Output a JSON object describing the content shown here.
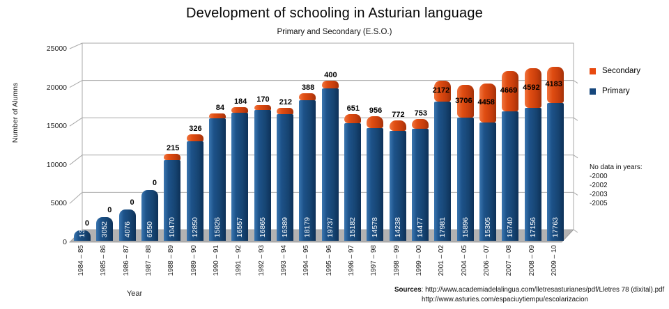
{
  "title": "Development of schooling in Asturian language",
  "subtitle": "Primary and Secondary (E.S.O.)",
  "ylabel": "Number of Alumns",
  "xlabel": "Year",
  "legend": {
    "secondary": "Secondary",
    "primary": "Primary"
  },
  "no_data": {
    "heading": "No data in years:",
    "years": [
      "-2000",
      "-2002",
      "-2003",
      "-2005"
    ]
  },
  "sources": {
    "label": "Sources",
    "line1_rest": ": http://www.academiadelalingua.com/lletresasturianes/pdf/Lletres 78 (dixital).pdf",
    "line2": "http://www.asturies.com/espaciuytiempu/escolarizacion"
  },
  "colors": {
    "primary": "#16477c",
    "secondary": "#e8490f",
    "grid": "#a9a9a9",
    "floor": "#b3b2b2",
    "bar_value_text": "#ffffff"
  },
  "chart_data": {
    "type": "bar",
    "stacked": true,
    "title": "Development of schooling in Asturian language",
    "subtitle": "Primary and Secondary (E.S.O.)",
    "xlabel": "Year",
    "ylabel": "Number of Alumns",
    "ylim": [
      0,
      25000
    ],
    "yticks": [
      0,
      5000,
      10000,
      15000,
      20000,
      25000
    ],
    "grid": true,
    "legend_position": "right",
    "categories": [
      "1984 – 85",
      "1985 – 86",
      "1986 – 87",
      "1987 – 88",
      "1988 – 89",
      "1989 – 90",
      "1990 – 91",
      "1991 – 92",
      "1992 – 93",
      "1993 – 94",
      "1994 – 95",
      "1995 – 96",
      "1996 – 97",
      "1997 – 98",
      "1998 – 99",
      "1999 – 00",
      "2001 – 02",
      "2004 – 05",
      "2006 – 07",
      "2007 – 08",
      "2008 – 09",
      "2009 – 10"
    ],
    "series": [
      {
        "name": "Primary",
        "values": [
          1351,
          3052,
          4076,
          6550,
          10470,
          12850,
          15826,
          16557,
          16865,
          16389,
          18179,
          19737,
          15182,
          14578,
          14238,
          14477,
          17981,
          15896,
          15305,
          16740,
          17156,
          17763
        ]
      },
      {
        "name": "Secondary",
        "values": [
          0,
          0,
          0,
          0,
          215,
          326,
          84,
          184,
          170,
          212,
          388,
          400,
          651,
          956,
          772,
          753,
          2172,
          3706,
          4458,
          4669,
          4592,
          4183
        ]
      }
    ]
  }
}
